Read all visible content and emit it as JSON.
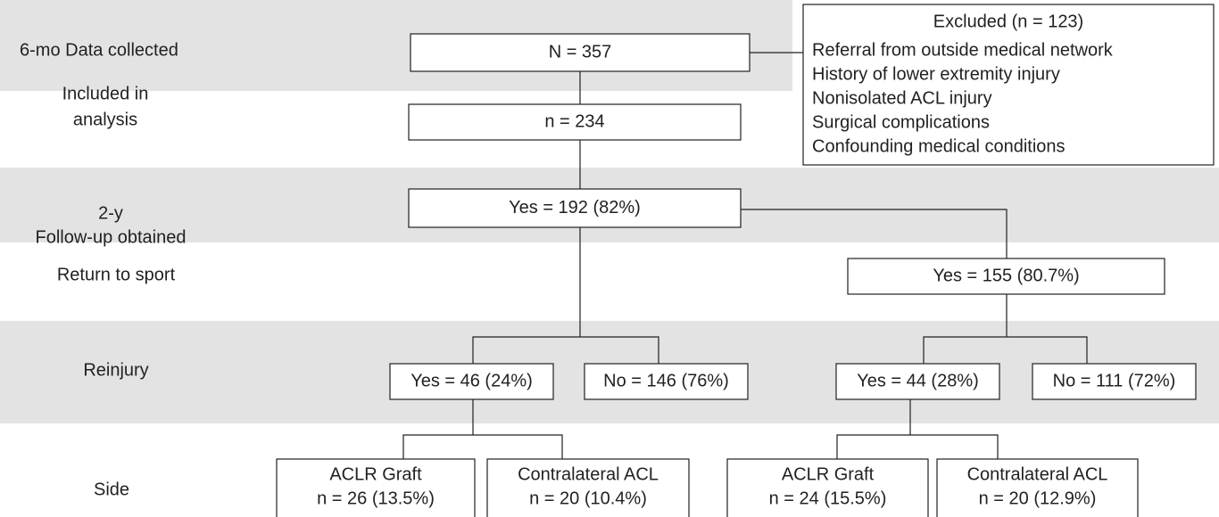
{
  "rows": [
    {
      "lines": [
        "6-mo Data collected"
      ]
    },
    {
      "lines": [
        "Included in",
        "analysis"
      ]
    },
    {
      "lines": [
        "2-y",
        "Follow-up obtained"
      ]
    },
    {
      "lines": [
        "Return to sport"
      ]
    },
    {
      "lines": [
        "Reinjury"
      ]
    },
    {
      "lines": [
        "Side"
      ]
    }
  ],
  "nodes": [
    {
      "lines": [
        "N = 357"
      ]
    },
    {
      "lines": [
        "n = 234"
      ]
    },
    {
      "lines": [
        "Yes = 192 (82%)"
      ]
    },
    {
      "lines": [
        "Yes = 155 (80.7%)"
      ]
    },
    {
      "lines": [
        "Yes = 46 (24%)"
      ]
    },
    {
      "lines": [
        "No = 146 (76%)"
      ]
    },
    {
      "lines": [
        "Yes = 44 (28%)"
      ]
    },
    {
      "lines": [
        "No = 111 (72%)"
      ]
    },
    {
      "lines": [
        "ACLR Graft",
        "n = 26 (13.5%)"
      ]
    },
    {
      "lines": [
        "Contralateral  ACL",
        "n = 20 (10.4%)"
      ]
    },
    {
      "lines": [
        "ACLR Graft",
        "n = 24 (15.5%)"
      ]
    },
    {
      "lines": [
        "Contralateral  ACL",
        "n = 20 (12.9%)"
      ]
    }
  ],
  "excluded": {
    "title": "Excluded (n = 123)",
    "items": [
      "Referral from outside medical network",
      "History of lower extremity injury",
      "Nonisolated ACL injury",
      "Surgical complications",
      "Confounding medical conditions"
    ]
  }
}
